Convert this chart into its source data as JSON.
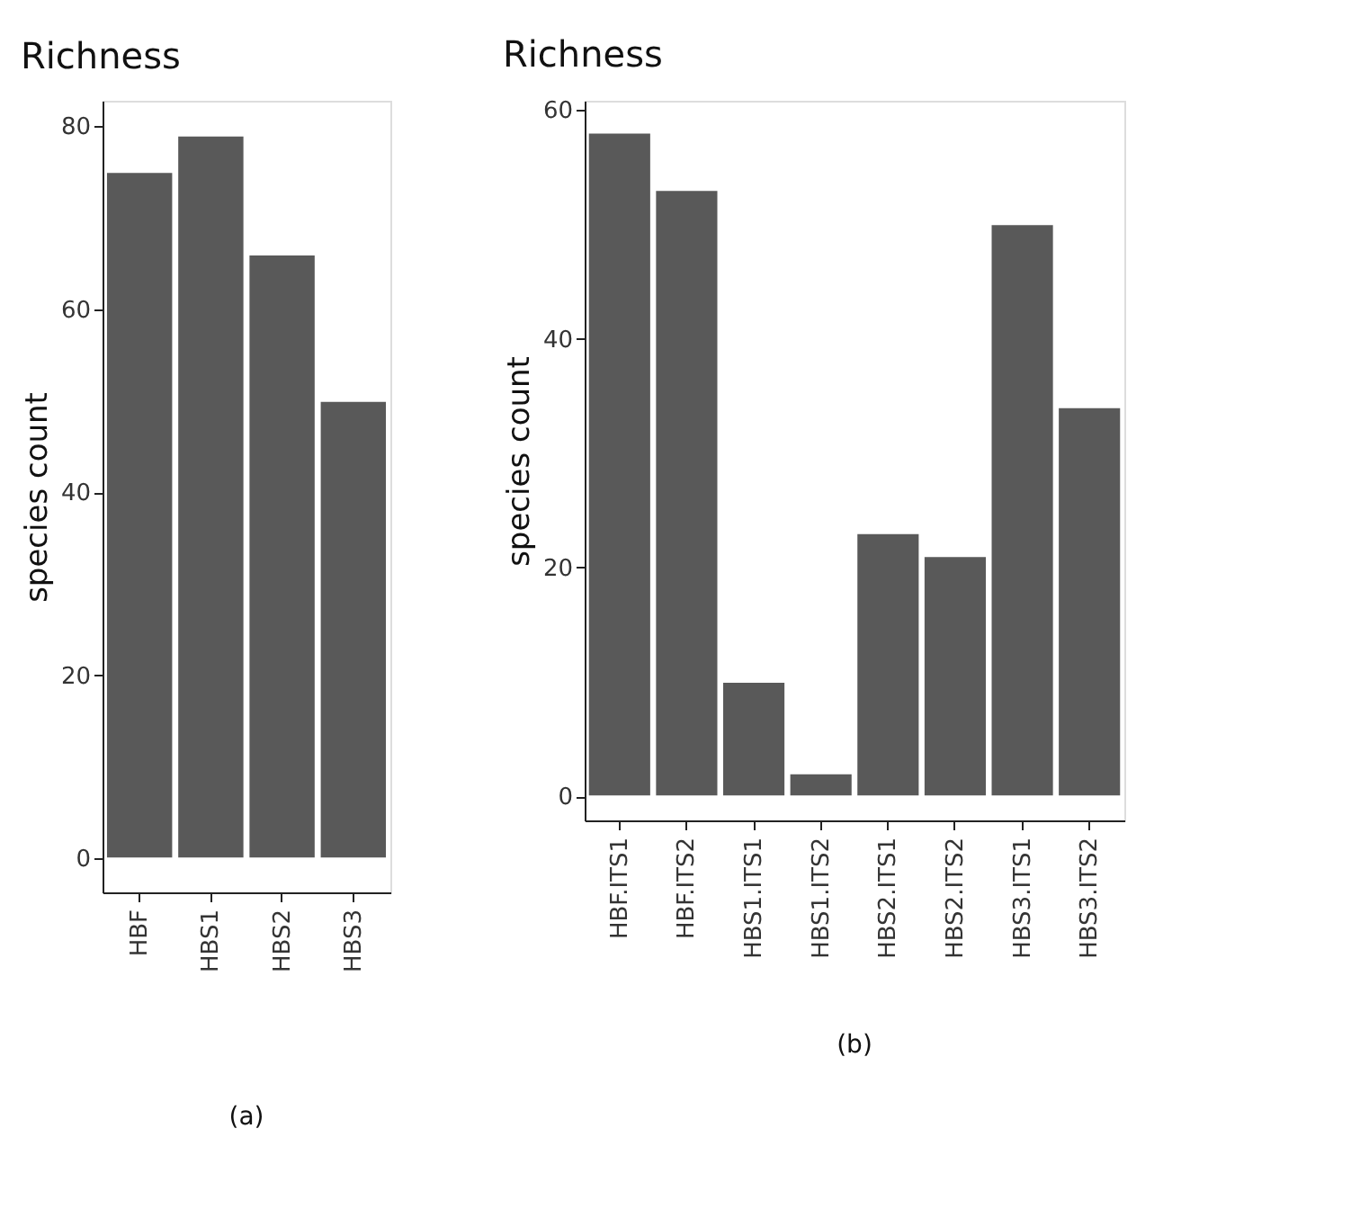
{
  "chart_data": [
    {
      "type": "bar",
      "title": "Richness",
      "ylabel": "species count",
      "categories": [
        "HBF",
        "HBS1",
        "HBS2",
        "HBS3"
      ],
      "values": [
        75,
        79,
        66,
        50
      ],
      "color": "#595959",
      "ylim": [
        -3.7,
        82.8
      ],
      "yticks": [
        0,
        20,
        40,
        60,
        80
      ],
      "grid": false,
      "annotations": [
        "(a)"
      ]
    },
    {
      "type": "bar",
      "title": "Richness",
      "ylabel": "species count",
      "categories": [
        "HBF.ITS1",
        "HBF.ITS2",
        "HBS1.ITS1",
        "HBS1.ITS2",
        "HBS2.ITS1",
        "HBS2.ITS2",
        "HBS3.ITS1",
        "HBS3.ITS2"
      ],
      "values": [
        58,
        53,
        10,
        2,
        23,
        21,
        50,
        34
      ],
      "color": "#595959",
      "ylim": [
        -2.1,
        60.8
      ],
      "yticks": [
        0,
        20,
        40,
        60
      ],
      "grid": false,
      "annotations": [
        "(b)"
      ]
    }
  ]
}
